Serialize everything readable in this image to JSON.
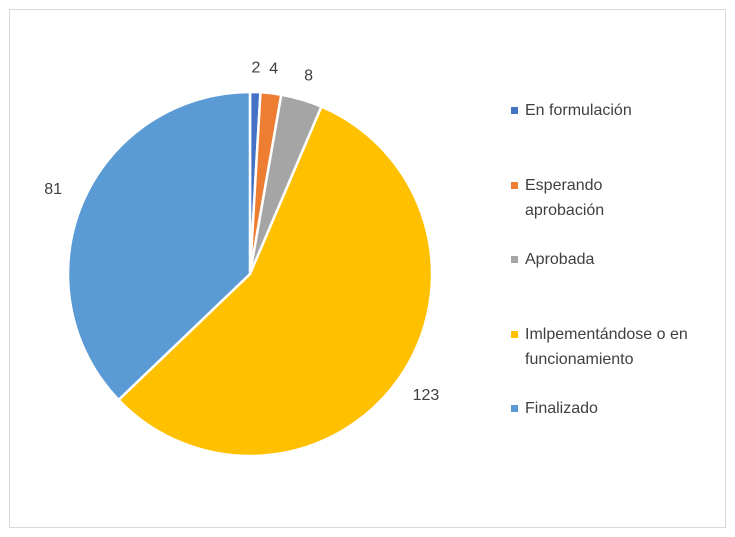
{
  "chart_data": {
    "type": "pie",
    "categories": [
      "En formulación",
      "Esperando aprobación",
      "Aprobada",
      "Imlpementándose o en funcionamiento",
      "Finalizado"
    ],
    "values": [
      2,
      4,
      8,
      123,
      81
    ],
    "colors": [
      "#4472c4",
      "#ed7d31",
      "#a5a5a5",
      "#ffc000",
      "#5b9bd5"
    ],
    "legend": "right"
  }
}
